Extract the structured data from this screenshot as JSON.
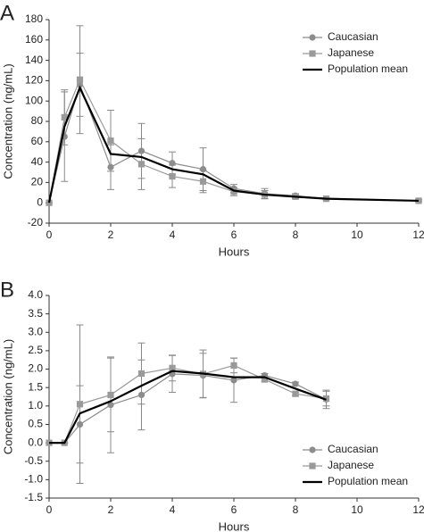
{
  "chart_data": [
    {
      "type": "line",
      "panel_label": "A",
      "x_label": "Hours",
      "y_label": "Concentration (ng/mL)",
      "x": [
        0,
        0.5,
        1,
        2,
        3,
        4,
        5,
        6,
        7,
        8,
        9,
        12
      ],
      "xlim": [
        0,
        12
      ],
      "xticks": [
        0,
        2,
        4,
        6,
        8,
        10,
        12
      ],
      "ylim": [
        -20,
        180
      ],
      "yticks": [
        -20,
        0,
        20,
        40,
        60,
        80,
        100,
        120,
        140,
        160,
        180
      ],
      "legend": "top-right",
      "series": [
        {
          "name": "Caucasian",
          "color": "#8c8c8c",
          "marker": "circle",
          "values": [
            0,
            65,
            116,
            35,
            51,
            39,
            33,
            14,
            9,
            7,
            4,
            2
          ],
          "errors": [
            0,
            44,
            31,
            22,
            27,
            11,
            21,
            4,
            5,
            2,
            1,
            1
          ]
        },
        {
          "name": "Japanese",
          "color": "#9a9a9a",
          "marker": "square",
          "values": [
            0,
            84,
            121,
            61,
            38,
            26,
            21,
            11,
            8,
            6,
            4,
            2
          ],
          "errors": [
            0,
            27,
            53,
            30,
            25,
            11,
            11,
            4,
            4,
            2,
            1,
            1
          ]
        },
        {
          "name": "Population mean",
          "color": "#000000",
          "marker": "none",
          "values": [
            0,
            75,
            113,
            48,
            45,
            33,
            28,
            12,
            8,
            6,
            4,
            2
          ]
        }
      ]
    },
    {
      "type": "line",
      "panel_label": "B",
      "x_label": "Hours",
      "y_label": "Concentration (ng/mL)",
      "x": [
        0,
        0.5,
        1,
        2,
        3,
        4,
        5,
        6,
        7,
        8,
        9
      ],
      "xlim": [
        0,
        12
      ],
      "xticks": [
        0,
        2,
        4,
        6,
        8,
        10,
        12
      ],
      "ylim": [
        -1.5,
        4
      ],
      "yticks": [
        -1.5,
        {
          "value": -1,
          "label": "-1.0"
        },
        -0.5,
        {
          "value": 0,
          "label": "0.0"
        },
        0.5,
        {
          "value": 1,
          "label": "1.0"
        },
        1.5,
        {
          "value": 2,
          "label": "2.0"
        },
        2.5,
        {
          "value": 3,
          "label": "3.0"
        },
        3.5,
        {
          "value": 4,
          "label": "4.0"
        }
      ],
      "legend": "bottom-right",
      "series": [
        {
          "name": "Caucasian",
          "color": "#8c8c8c",
          "marker": "circle",
          "values": [
            0,
            0,
            0.5,
            1.03,
            1.3,
            1.87,
            1.83,
            1.7,
            1.83,
            1.6,
            1.18
          ],
          "errors": [
            0,
            0,
            1.05,
            1.3,
            0.95,
            0.5,
            0.6,
            0.6,
            0.05,
            0.05,
            0.25
          ]
        },
        {
          "name": "Japanese",
          "color": "#9a9a9a",
          "marker": "square",
          "values": [
            0,
            0,
            1.05,
            1.3,
            1.88,
            2.03,
            1.87,
            2.1,
            1.72,
            1.33,
            1.2
          ],
          "errors": [
            0,
            0,
            2.15,
            1,
            0.83,
            0.35,
            0.65,
            0.2,
            0.05,
            0.05,
            0.2
          ]
        },
        {
          "name": "Population mean",
          "color": "#000000",
          "marker": "none",
          "values": [
            0,
            0,
            0.8,
            1.13,
            1.55,
            1.95,
            1.88,
            1.78,
            1.78,
            1.47,
            1.17
          ]
        }
      ]
    }
  ]
}
